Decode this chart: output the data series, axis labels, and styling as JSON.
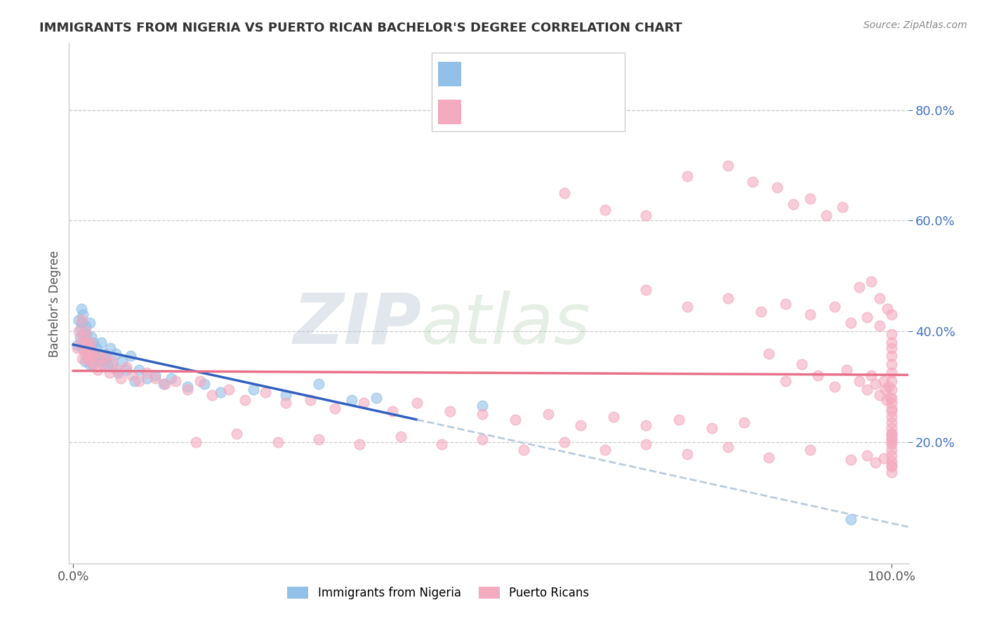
{
  "title": "IMMIGRANTS FROM NIGERIA VS PUERTO RICAN BACHELOR'S DEGREE CORRELATION CHART",
  "source": "Source: ZipAtlas.com",
  "ylabel": "Bachelor's Degree",
  "ytick_vals": [
    0.2,
    0.4,
    0.6,
    0.8
  ],
  "ytick_labels": [
    "20.0%",
    "40.0%",
    "60.0%",
    "80.0%"
  ],
  "xlim": [
    -0.005,
    1.02
  ],
  "ylim": [
    -0.02,
    0.92
  ],
  "watermark_zip": "ZIP",
  "watermark_atlas": "atlas",
  "blue_color": "#92C0E8",
  "pink_color": "#F4AABF",
  "trend_blue": "#3060C0",
  "trend_pink": "#E8708A",
  "trend_gray": "#BBCCDD",
  "title_color": "#333333",
  "ytick_color": "#4472C4",
  "legend_color": "#4472C4",
  "source_color": "#888888",
  "grid_color": "#CCCCCC",
  "blue_x": [
    0.005,
    0.007,
    0.008,
    0.009,
    0.01,
    0.01,
    0.011,
    0.012,
    0.012,
    0.013,
    0.014,
    0.015,
    0.015,
    0.016,
    0.017,
    0.018,
    0.019,
    0.02,
    0.02,
    0.021,
    0.022,
    0.023,
    0.024,
    0.025,
    0.026,
    0.028,
    0.03,
    0.032,
    0.034,
    0.036,
    0.038,
    0.04,
    0.042,
    0.045,
    0.048,
    0.052,
    0.055,
    0.06,
    0.065,
    0.07,
    0.075,
    0.08,
    0.09,
    0.1,
    0.11,
    0.12,
    0.14,
    0.16,
    0.18,
    0.22,
    0.26,
    0.3,
    0.34,
    0.37,
    0.5,
    0.95
  ],
  "blue_y": [
    0.375,
    0.42,
    0.39,
    0.405,
    0.415,
    0.44,
    0.37,
    0.395,
    0.43,
    0.38,
    0.345,
    0.37,
    0.41,
    0.395,
    0.355,
    0.38,
    0.365,
    0.34,
    0.415,
    0.375,
    0.39,
    0.36,
    0.34,
    0.38,
    0.355,
    0.37,
    0.35,
    0.345,
    0.38,
    0.34,
    0.36,
    0.35,
    0.34,
    0.37,
    0.34,
    0.36,
    0.325,
    0.345,
    0.33,
    0.355,
    0.31,
    0.33,
    0.315,
    0.32,
    0.305,
    0.315,
    0.3,
    0.305,
    0.29,
    0.295,
    0.285,
    0.305,
    0.275,
    0.28,
    0.265,
    0.06
  ],
  "pink_x": [
    0.005,
    0.007,
    0.009,
    0.01,
    0.011,
    0.012,
    0.013,
    0.014,
    0.015,
    0.016,
    0.017,
    0.018,
    0.019,
    0.02,
    0.021,
    0.022,
    0.023,
    0.025,
    0.027,
    0.03,
    0.033,
    0.036,
    0.04,
    0.044,
    0.048,
    0.053,
    0.058,
    0.065,
    0.072,
    0.08,
    0.09,
    0.1,
    0.112,
    0.125,
    0.14,
    0.155,
    0.17,
    0.19,
    0.21,
    0.235,
    0.26,
    0.29,
    0.32,
    0.355,
    0.39,
    0.42,
    0.46,
    0.5,
    0.54,
    0.58,
    0.62,
    0.66,
    0.7,
    0.74,
    0.78,
    0.82,
    0.85,
    0.87,
    0.89,
    0.91,
    0.93,
    0.945,
    0.96,
    0.97,
    0.975,
    0.98,
    0.985,
    0.99,
    0.992,
    0.994,
    0.996,
    0.998,
    1.0,
    0.15,
    0.2,
    0.25,
    0.3,
    0.35,
    0.4,
    0.45,
    0.5,
    0.55,
    0.6,
    0.65,
    0.7,
    0.75,
    0.8,
    0.85,
    0.9,
    0.95,
    0.97,
    0.98,
    0.99,
    1.0,
    0.6,
    0.65,
    0.7,
    0.75,
    0.8,
    0.83,
    0.86,
    0.88,
    0.9,
    0.92,
    0.94,
    0.96,
    0.975,
    0.985,
    0.995,
    1.0,
    0.7,
    0.75,
    0.8,
    0.84,
    0.87,
    0.9,
    0.93,
    0.95,
    0.97,
    0.985,
    1.0,
    1.0,
    1.0,
    1.0,
    1.0,
    1.0,
    1.0,
    1.0,
    1.0,
    1.0,
    1.0,
    1.0,
    1.0,
    1.0,
    1.0,
    1.0,
    1.0,
    1.0,
    1.0,
    1.0,
    1.0,
    1.0,
    1.0,
    1.0,
    1.0
  ],
  "pink_y": [
    0.37,
    0.4,
    0.38,
    0.42,
    0.35,
    0.39,
    0.37,
    0.36,
    0.4,
    0.38,
    0.35,
    0.375,
    0.36,
    0.345,
    0.38,
    0.355,
    0.365,
    0.34,
    0.36,
    0.33,
    0.35,
    0.34,
    0.355,
    0.325,
    0.345,
    0.33,
    0.315,
    0.335,
    0.32,
    0.31,
    0.325,
    0.315,
    0.305,
    0.31,
    0.295,
    0.31,
    0.285,
    0.295,
    0.275,
    0.29,
    0.27,
    0.275,
    0.26,
    0.27,
    0.255,
    0.27,
    0.255,
    0.25,
    0.24,
    0.25,
    0.23,
    0.245,
    0.23,
    0.24,
    0.225,
    0.235,
    0.36,
    0.31,
    0.34,
    0.32,
    0.3,
    0.33,
    0.31,
    0.295,
    0.32,
    0.305,
    0.285,
    0.31,
    0.295,
    0.275,
    0.3,
    0.28,
    0.26,
    0.2,
    0.215,
    0.2,
    0.205,
    0.195,
    0.21,
    0.195,
    0.205,
    0.185,
    0.2,
    0.185,
    0.195,
    0.178,
    0.19,
    0.172,
    0.185,
    0.168,
    0.175,
    0.163,
    0.17,
    0.158,
    0.65,
    0.62,
    0.61,
    0.68,
    0.7,
    0.67,
    0.66,
    0.63,
    0.64,
    0.61,
    0.625,
    0.48,
    0.49,
    0.46,
    0.44,
    0.43,
    0.475,
    0.445,
    0.46,
    0.435,
    0.45,
    0.43,
    0.445,
    0.415,
    0.425,
    0.41,
    0.395,
    0.38,
    0.37,
    0.355,
    0.34,
    0.325,
    0.31,
    0.295,
    0.28,
    0.27,
    0.255,
    0.245,
    0.235,
    0.225,
    0.215,
    0.208,
    0.2,
    0.215,
    0.205,
    0.195,
    0.185,
    0.175,
    0.165,
    0.155,
    0.145
  ]
}
